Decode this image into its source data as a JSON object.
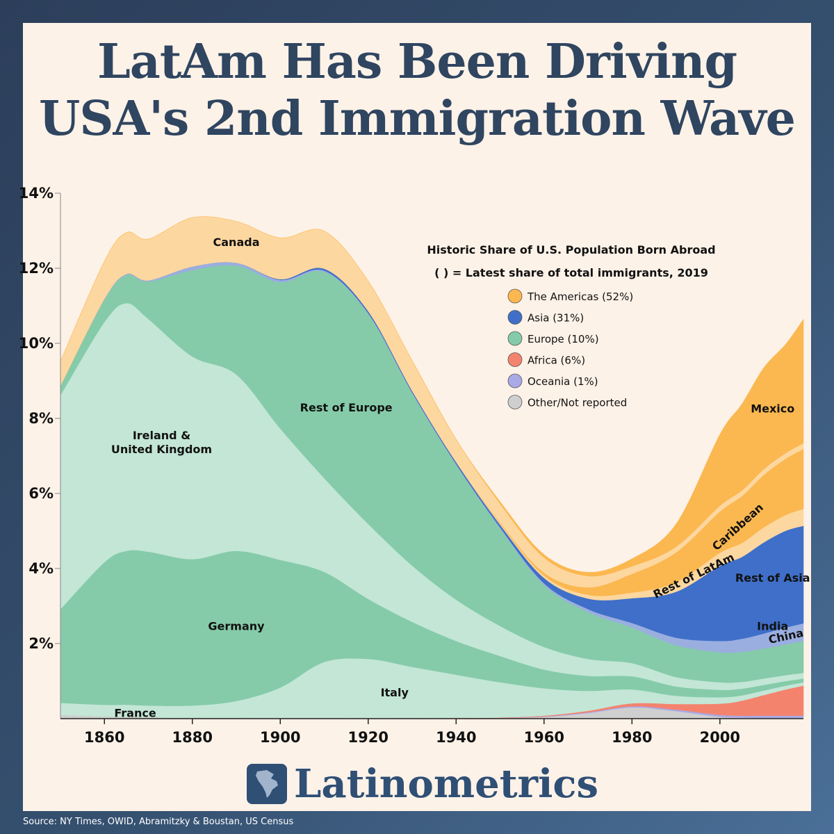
{
  "title_lines": [
    "LatAm Has Been Driving",
    "USA's 2nd Immigration Wave"
  ],
  "brand": "Latinometrics",
  "source": "Source: NY Times, OWID, Abramitzky & Boustan, US Census",
  "chart_data": {
    "type": "area",
    "stacked": true,
    "x": [
      1850,
      1860,
      1865,
      1870,
      1880,
      1890,
      1900,
      1910,
      1920,
      1930,
      1940,
      1950,
      1960,
      1970,
      1980,
      1990,
      2000,
      2005,
      2010,
      2015,
      2019
    ],
    "xticks": [
      1860,
      1880,
      1900,
      1920,
      1940,
      1960,
      1980,
      2000
    ],
    "xtick_labels": [
      "1860",
      "1880",
      "1900",
      "1920",
      "1940",
      "1960",
      "1980",
      "2000"
    ],
    "yticks": [
      0.02,
      0.04,
      0.06,
      0.08,
      0.1,
      0.12,
      0.14
    ],
    "ytick_labels": [
      "2%",
      "4%",
      "6%",
      "8%",
      "10%",
      "12%",
      "14%"
    ],
    "ylim": [
      0,
      0.14
    ],
    "xlim": [
      1850,
      2019
    ],
    "grid": false,
    "series": [
      {
        "name": "Other/Not reported",
        "region": "Other/Not reported",
        "color": "#cfcfcf",
        "values": [
          0.001,
          0.0005,
          0.0004,
          0.0003,
          0.0002,
          0.0002,
          0.0001,
          0.0001,
          0.0001,
          0.0001,
          0.0001,
          0.0002,
          0.0005,
          0.0015,
          0.003,
          0.002,
          0.0005,
          0.0003,
          0.0002,
          0.0002,
          0.0002
        ]
      },
      {
        "name": "Oceania",
        "region": "Oceania",
        "color": "#a9a9e6",
        "values": [
          0.0,
          0.0,
          0.0,
          0.0,
          0.0,
          0.0,
          0.0,
          0.0,
          0.0,
          0.0,
          0.0,
          0.0,
          0.0001,
          0.0002,
          0.0003,
          0.0004,
          0.0005,
          0.0005,
          0.0006,
          0.0006,
          0.0006
        ]
      },
      {
        "name": "Africa",
        "region": "Africa",
        "color": "#f4836e",
        "values": [
          0.0,
          0.0,
          0.0,
          0.0,
          0.0,
          0.0,
          0.0,
          0.0,
          0.0,
          0.0,
          0.0001,
          0.0001,
          0.0002,
          0.0004,
          0.0008,
          0.0015,
          0.003,
          0.004,
          0.0055,
          0.007,
          0.008
        ]
      },
      {
        "name": "France",
        "label": "France",
        "region": "Europe",
        "color": "#c3e6d6",
        "values": [
          0.003,
          0.0027,
          0.0025,
          0.0022,
          0.0018,
          0.0015,
          0.0012,
          0.001,
          0.0008,
          0.0007,
          0.0005,
          0.0004,
          0.0003,
          0.0003,
          0.0002,
          0.0002,
          0.0002,
          0.0002,
          0.0002,
          0.0002,
          0.0002
        ]
      },
      {
        "name": "Italy",
        "label": "Italy",
        "region": "Europe",
        "color": "#c3e6d6",
        "values": [
          0.0002,
          0.0005,
          0.0008,
          0.001,
          0.0015,
          0.003,
          0.007,
          0.014,
          0.015,
          0.013,
          0.011,
          0.009,
          0.007,
          0.005,
          0.0035,
          0.002,
          0.0015,
          0.0012,
          0.001,
          0.0008,
          0.0007
        ]
      },
      {
        "name": "Germany",
        "label": "Germany",
        "region": "Europe",
        "color": "#85cba9",
        "values": [
          0.025,
          0.038,
          0.041,
          0.041,
          0.039,
          0.04,
          0.034,
          0.024,
          0.016,
          0.012,
          0.009,
          0.007,
          0.005,
          0.004,
          0.0035,
          0.0025,
          0.002,
          0.0018,
          0.0015,
          0.0012,
          0.001
        ]
      },
      {
        "name": "Ireland & United Kingdom",
        "label": "Ireland &|United Kingdom",
        "region": "Europe",
        "color": "#c3e6d6",
        "values": [
          0.057,
          0.064,
          0.066,
          0.062,
          0.054,
          0.047,
          0.035,
          0.025,
          0.02,
          0.015,
          0.011,
          0.008,
          0.006,
          0.0045,
          0.0035,
          0.0025,
          0.002,
          0.0018,
          0.0017,
          0.0016,
          0.0015
        ]
      },
      {
        "name": "Rest of Europe",
        "label": "Rest of Europe",
        "region": "Europe",
        "color": "#85cba9",
        "values": [
          0.0025,
          0.006,
          0.0075,
          0.01,
          0.023,
          0.029,
          0.039,
          0.055,
          0.056,
          0.046,
          0.036,
          0.026,
          0.0165,
          0.0125,
          0.0095,
          0.0085,
          0.008,
          0.008,
          0.008,
          0.0082,
          0.0085
        ]
      },
      {
        "name": "China",
        "label": "China",
        "region": "Asia",
        "color": "#9aaee0",
        "values": [
          0.0,
          0.0002,
          0.0003,
          0.0003,
          0.001,
          0.0008,
          0.0006,
          0.0003,
          0.0002,
          0.0002,
          0.0002,
          0.0003,
          0.0005,
          0.0008,
          0.0012,
          0.002,
          0.003,
          0.0035,
          0.004,
          0.0045,
          0.0047
        ]
      },
      {
        "name": "India",
        "label": "India",
        "region": "Asia",
        "color": "#3f6fc8",
        "values": [
          0.0,
          0.0,
          0.0,
          0.0,
          0.0,
          0.0,
          0.0,
          0.0,
          0.0,
          0.0,
          0.0,
          0.0001,
          0.0002,
          0.0003,
          0.0006,
          0.0012,
          0.003,
          0.0038,
          0.0043,
          0.0048,
          0.005
        ]
      },
      {
        "name": "Rest of Asia",
        "label": "Rest of Asia",
        "region": "Asia",
        "color": "#3f6fc8",
        "values": [
          0.0,
          0.0,
          0.0,
          0.0,
          0.0,
          0.0,
          0.0002,
          0.0005,
          0.0005,
          0.0004,
          0.0005,
          0.0006,
          0.0012,
          0.0025,
          0.006,
          0.011,
          0.017,
          0.018,
          0.02,
          0.021,
          0.021
        ]
      },
      {
        "name": "Rest of LatAm",
        "label": "Rest of LatAm",
        "region": "The Americas",
        "color": "#fdd7a0",
        "values": [
          0.0,
          0.0,
          0.0,
          0.0,
          0.0,
          0.0,
          0.0,
          0.0,
          0.0,
          0.0,
          0.0,
          0.0003,
          0.0006,
          0.001,
          0.0015,
          0.0025,
          0.0035,
          0.0037,
          0.004,
          0.0042,
          0.0045
        ]
      },
      {
        "name": "Caribbean",
        "label": "Caribbean",
        "region": "The Americas",
        "color": "#fbb850",
        "values": [
          0.0,
          0.0,
          0.0,
          0.0,
          0.0,
          0.0,
          0.0,
          0.0,
          0.0,
          0.0,
          0.0,
          0.0003,
          0.0008,
          0.002,
          0.005,
          0.008,
          0.011,
          0.0125,
          0.014,
          0.015,
          0.016
        ]
      },
      {
        "name": "Canada",
        "label": "Canada",
        "region": "The Americas",
        "color": "#fdd7a0",
        "values": [
          0.0065,
          0.01,
          0.011,
          0.011,
          0.013,
          0.011,
          0.011,
          0.01,
          0.008,
          0.008,
          0.006,
          0.005,
          0.004,
          0.003,
          0.002,
          0.0015,
          0.0015,
          0.0015,
          0.0015,
          0.0015,
          0.0015
        ]
      },
      {
        "name": "Mexico",
        "label": "Mexico",
        "region": "The Americas",
        "color": "#fbb850",
        "values": [
          0.0,
          0.0,
          0.0,
          0.0,
          0.0,
          0.0,
          0.0,
          0.0,
          0.0,
          0.0,
          0.0,
          0.0005,
          0.0008,
          0.001,
          0.002,
          0.006,
          0.019,
          0.023,
          0.027,
          0.029,
          0.033
        ]
      }
    ],
    "legend": {
      "title": "Historic Share of U.S. Population Born Abroad",
      "subtitle": "( ) = Latest share of total immigrants, 2019",
      "placement": "top-right",
      "items": [
        {
          "label": "The Americas (52%)",
          "color": "#fbb850"
        },
        {
          "label": "Asia (31%)",
          "color": "#3f6fc8"
        },
        {
          "label": "Europe (10%)",
          "color": "#85cba9"
        },
        {
          "label": "Africa (6%)",
          "color": "#f4836e"
        },
        {
          "label": "Oceania (1%)",
          "color": "#a9a9e6"
        },
        {
          "label": "Other/Not reported",
          "color": "#cfcfcf"
        }
      ]
    }
  }
}
